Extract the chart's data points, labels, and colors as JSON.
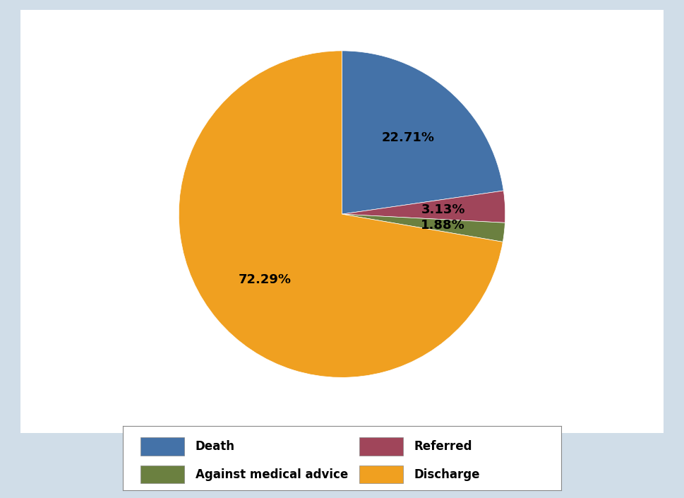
{
  "slices": [
    {
      "label": "Death",
      "value": 22.71,
      "color": "#4472A8"
    },
    {
      "label": "Referred",
      "value": 3.13,
      "color": "#A0455A"
    },
    {
      "label": "Against medical advice",
      "value": 1.88,
      "color": "#6B8040"
    },
    {
      "label": "Discharge",
      "value": 72.29,
      "color": "#F0A020"
    }
  ],
  "background_color": "#FFFFFF",
  "outer_background_color": "#D0DDE8",
  "legend_order": [
    "Death",
    "Referred",
    "Against medical advice",
    "Discharge"
  ],
  "label_fontsize": 13,
  "legend_fontsize": 12
}
